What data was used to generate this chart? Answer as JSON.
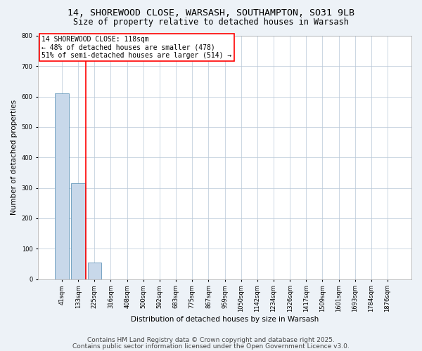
{
  "title1": "14, SHOREWOOD CLOSE, WARSASH, SOUTHAMPTON, SO31 9LB",
  "title2": "Size of property relative to detached houses in Warsash",
  "xlabel": "Distribution of detached houses by size in Warsash",
  "ylabel": "Number of detached properties",
  "categories": [
    "41sqm",
    "133sqm",
    "225sqm",
    "316sqm",
    "408sqm",
    "500sqm",
    "592sqm",
    "683sqm",
    "775sqm",
    "867sqm",
    "959sqm",
    "1050sqm",
    "1142sqm",
    "1234sqm",
    "1326sqm",
    "1417sqm",
    "1509sqm",
    "1601sqm",
    "1693sqm",
    "1784sqm",
    "1876sqm"
  ],
  "values": [
    610,
    315,
    55,
    0,
    0,
    0,
    0,
    0,
    0,
    0,
    0,
    0,
    0,
    0,
    0,
    0,
    0,
    0,
    0,
    0,
    0
  ],
  "bar_color": "#c8d8ea",
  "bar_edge_color": "#6699bb",
  "annotation_text": "14 SHOREWOOD CLOSE: 118sqm\n← 48% of detached houses are smaller (478)\n51% of semi-detached houses are larger (514) →",
  "annotation_box_color": "white",
  "annotation_box_edge_color": "red",
  "vline_color": "red",
  "vline_x": 1.45,
  "ylim": [
    0,
    800
  ],
  "yticks": [
    0,
    100,
    200,
    300,
    400,
    500,
    600,
    700,
    800
  ],
  "footer1": "Contains HM Land Registry data © Crown copyright and database right 2025.",
  "footer2": "Contains public sector information licensed under the Open Government Licence v3.0.",
  "bg_color": "#edf2f7",
  "plot_bg_color": "#ffffff",
  "grid_color": "#b8c8d8",
  "title_fontsize": 9.5,
  "subtitle_fontsize": 8.5,
  "annotation_fontsize": 7,
  "ylabel_fontsize": 7.5,
  "xlabel_fontsize": 7.5,
  "tick_fontsize": 6,
  "footer_fontsize": 6.5
}
